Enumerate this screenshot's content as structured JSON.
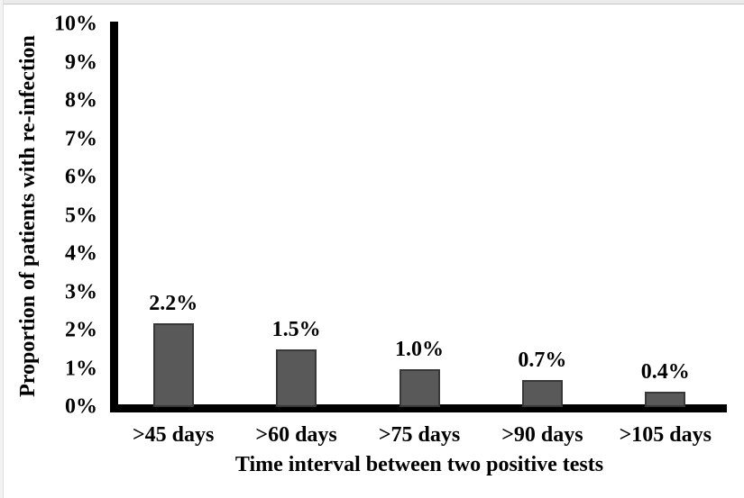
{
  "chart_data": {
    "type": "bar",
    "title": "",
    "xlabel": "Time interval between two positive tests",
    "ylabel": "Proportion of patients with re-infection",
    "categories": [
      ">45 days",
      ">60 days",
      ">75 days",
      ">90 days",
      ">105 days"
    ],
    "values": [
      2.2,
      1.5,
      1.0,
      0.7,
      0.4
    ],
    "value_labels": [
      "2.2%",
      "1.5%",
      "1.0%",
      "0.7%",
      "0.4%"
    ],
    "ylim": [
      0,
      10
    ],
    "ytick_step": 1,
    "ytick_labels": [
      "0%",
      "1%",
      "2%",
      "3%",
      "4%",
      "5%",
      "6%",
      "7%",
      "8%",
      "9%",
      "10%"
    ],
    "grid": false,
    "legend": "none",
    "colors": {
      "bar_fill": "#595959",
      "bar_border": "#383838",
      "axis": "#000000",
      "text": "#000000",
      "background": "#ffffff"
    }
  }
}
